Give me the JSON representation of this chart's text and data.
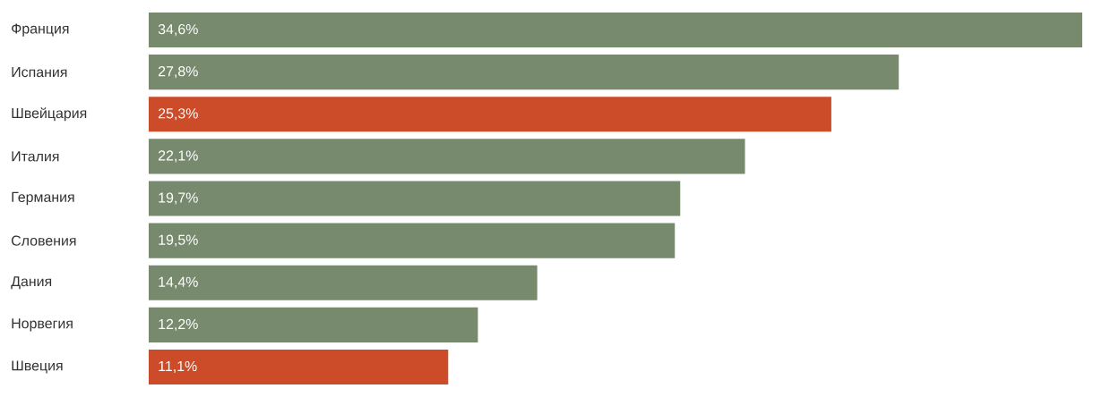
{
  "chart_data": {
    "type": "bar",
    "orientation": "horizontal",
    "categories": [
      "Франция",
      "Испания",
      "Швейцария",
      "Италия",
      "Германия",
      "Словения",
      "Дания",
      "Норвегия",
      "Швеция"
    ],
    "values": [
      34.6,
      27.8,
      25.3,
      22.1,
      19.7,
      19.5,
      14.4,
      12.2,
      11.1
    ],
    "value_labels": [
      "34,6%",
      "27,8%",
      "25,3%",
      "22,1%",
      "19,7%",
      "19,5%",
      "14,4%",
      "12,2%",
      "11,1%"
    ],
    "colors": [
      "#778a6e",
      "#778a6e",
      "#cc4b29",
      "#778a6e",
      "#778a6e",
      "#778a6e",
      "#778a6e",
      "#778a6e",
      "#cc4b29"
    ],
    "xlim": [
      0,
      34.6
    ]
  }
}
